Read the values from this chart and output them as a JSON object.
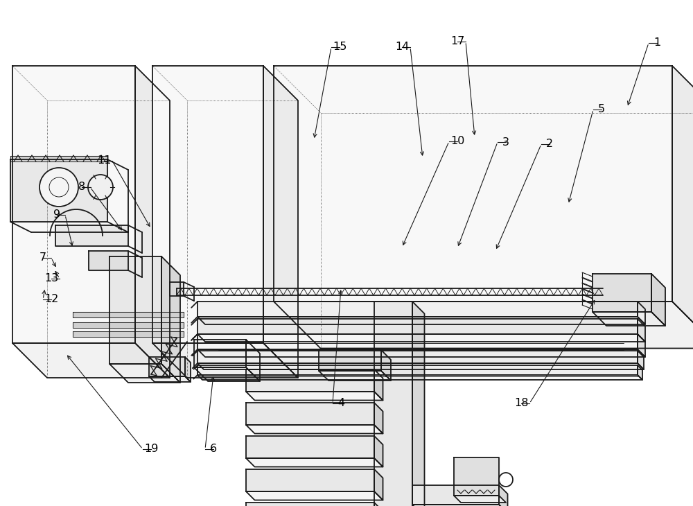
{
  "bg_color": "#ffffff",
  "lc": "#1a1a1a",
  "lw": 1.3,
  "tlw": 0.65,
  "fig_w": 10.0,
  "fig_h": 7.3,
  "dpi": 100,
  "leaders": [
    [
      "1",
      948,
      62,
      905,
      155
    ],
    [
      "2",
      793,
      208,
      715,
      362
    ],
    [
      "3",
      730,
      205,
      660,
      358
    ],
    [
      "5",
      868,
      158,
      820,
      295
    ],
    [
      "10",
      660,
      204,
      580,
      357
    ],
    [
      "4",
      492,
      582,
      492,
      415
    ],
    [
      "18",
      752,
      582,
      860,
      430
    ],
    [
      "6",
      308,
      648,
      308,
      540
    ],
    [
      "19",
      218,
      648,
      95,
      510
    ],
    [
      "12",
      74,
      432,
      65,
      415
    ],
    [
      "13",
      74,
      402,
      78,
      388
    ],
    [
      "7",
      62,
      372,
      82,
      388
    ],
    [
      "9",
      82,
      310,
      105,
      358
    ],
    [
      "8",
      118,
      270,
      178,
      335
    ],
    [
      "11",
      150,
      232,
      218,
      330
    ],
    [
      "14",
      580,
      68,
      610,
      228
    ],
    [
      "15",
      490,
      68,
      453,
      202
    ],
    [
      "17",
      660,
      60,
      685,
      198
    ]
  ]
}
